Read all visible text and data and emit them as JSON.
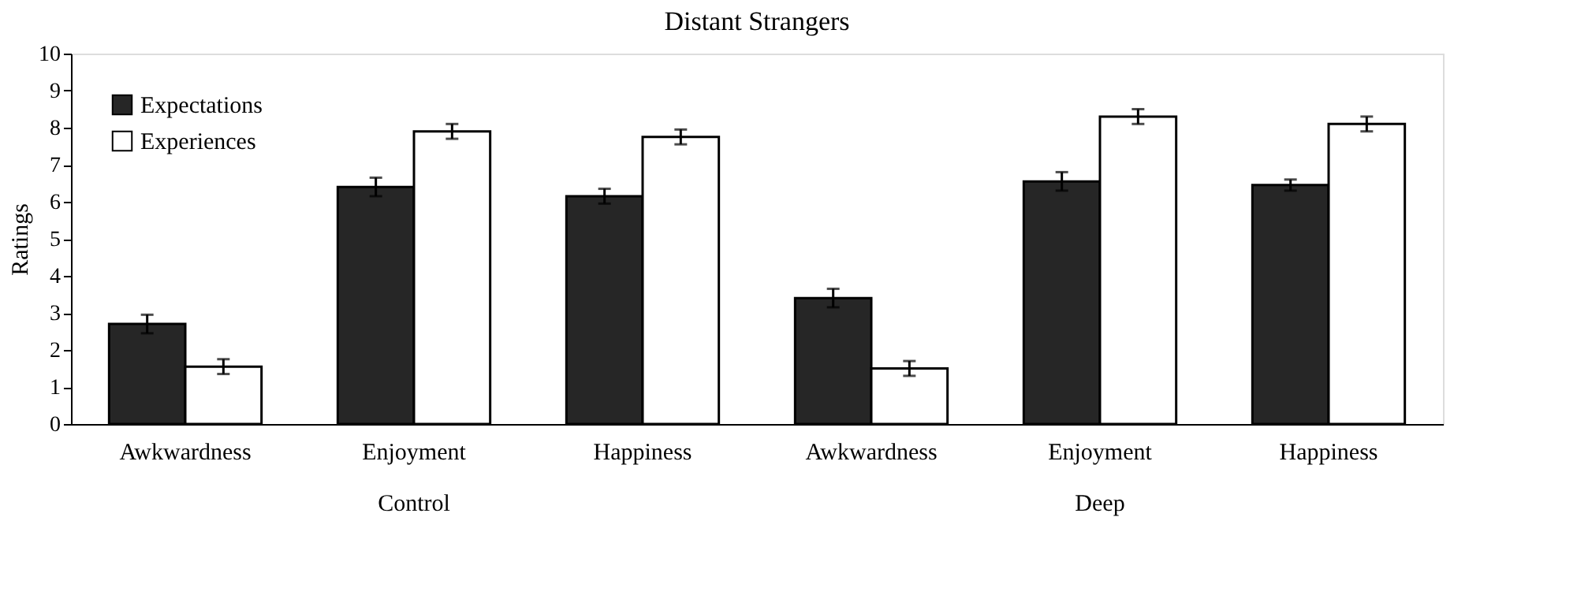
{
  "chart_data": {
    "type": "bar",
    "title": "Distant Strangers",
    "ylabel": "Ratings",
    "categories": [
      "Awkwardness",
      "Enjoyment",
      "Happiness",
      "Awkwardness",
      "Enjoyment",
      "Happiness"
    ],
    "series": [
      {
        "name": "Expectations",
        "color": "#262626",
        "values": [
          2.7,
          6.4,
          6.15,
          3.4,
          6.55,
          6.45
        ],
        "errors": [
          0.25,
          0.25,
          0.2,
          0.25,
          0.25,
          0.15
        ]
      },
      {
        "name": "Experiences",
        "color": "#ffffff",
        "values": [
          1.55,
          7.9,
          7.75,
          1.5,
          8.3,
          8.1
        ],
        "errors": [
          0.2,
          0.2,
          0.2,
          0.2,
          0.2,
          0.2
        ]
      }
    ],
    "annotations": [
      "Control",
      "Deep"
    ],
    "ylim": [
      0,
      10
    ],
    "yticks": [
      0,
      1,
      2,
      3,
      4,
      5,
      6,
      7,
      8,
      9,
      10
    ],
    "grid": false,
    "legend": "top left"
  }
}
